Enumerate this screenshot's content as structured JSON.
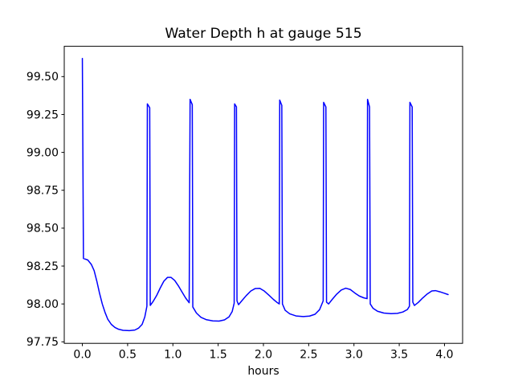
{
  "figure": {
    "background": "#ffffff",
    "axes_color": "#000000",
    "line_color": "#0000ff"
  },
  "chart_data": {
    "type": "line",
    "title": "Water Depth h at gauge 515",
    "xlabel": "hours",
    "ylabel": "",
    "grid": false,
    "legend": null,
    "xlim": [
      -0.2,
      4.2
    ],
    "ylim": [
      97.74,
      99.7
    ],
    "xticks": [
      0.0,
      0.5,
      1.0,
      1.5,
      2.0,
      2.5,
      3.0,
      3.5,
      4.0
    ],
    "xtick_labels": [
      "0.0",
      "0.5",
      "1.0",
      "1.5",
      "2.0",
      "2.5",
      "3.0",
      "3.5",
      "4.0"
    ],
    "yticks": [
      97.75,
      98.0,
      98.25,
      98.5,
      98.75,
      99.0,
      99.25,
      99.5
    ],
    "ytick_labels": [
      "97.75",
      "98.00",
      "98.25",
      "98.50",
      "98.75",
      "99.00",
      "99.25",
      "99.50"
    ],
    "series": [
      {
        "name": "water-depth-h",
        "color": "#0000ff",
        "line_width": 1.5,
        "points": [
          [
            0.0,
            99.62
          ],
          [
            0.012,
            98.3
          ],
          [
            0.06,
            98.29
          ],
          [
            0.1,
            98.26
          ],
          [
            0.13,
            98.22
          ],
          [
            0.16,
            98.15
          ],
          [
            0.19,
            98.07
          ],
          [
            0.22,
            98.0
          ],
          [
            0.25,
            97.945
          ],
          [
            0.28,
            97.9
          ],
          [
            0.32,
            97.865
          ],
          [
            0.36,
            97.845
          ],
          [
            0.4,
            97.833
          ],
          [
            0.45,
            97.826
          ],
          [
            0.52,
            97.824
          ],
          [
            0.58,
            97.828
          ],
          [
            0.62,
            97.84
          ],
          [
            0.66,
            97.865
          ],
          [
            0.69,
            97.915
          ],
          [
            0.713,
            97.985
          ],
          [
            0.718,
            99.32
          ],
          [
            0.744,
            99.295
          ],
          [
            0.75,
            97.99
          ],
          [
            0.78,
            98.015
          ],
          [
            0.82,
            98.055
          ],
          [
            0.86,
            98.105
          ],
          [
            0.9,
            98.15
          ],
          [
            0.94,
            98.175
          ],
          [
            0.98,
            98.175
          ],
          [
            1.02,
            98.155
          ],
          [
            1.06,
            98.12
          ],
          [
            1.1,
            98.08
          ],
          [
            1.14,
            98.04
          ],
          [
            1.18,
            98.008
          ],
          [
            1.19,
            99.35
          ],
          [
            1.214,
            99.315
          ],
          [
            1.22,
            97.98
          ],
          [
            1.26,
            97.94
          ],
          [
            1.31,
            97.912
          ],
          [
            1.37,
            97.896
          ],
          [
            1.44,
            97.888
          ],
          [
            1.51,
            97.887
          ],
          [
            1.57,
            97.895
          ],
          [
            1.62,
            97.915
          ],
          [
            1.655,
            97.95
          ],
          [
            1.677,
            98.005
          ],
          [
            1.682,
            99.32
          ],
          [
            1.702,
            99.3
          ],
          [
            1.708,
            98.02
          ],
          [
            1.725,
            97.995
          ],
          [
            1.76,
            98.02
          ],
          [
            1.81,
            98.055
          ],
          [
            1.86,
            98.085
          ],
          [
            1.91,
            98.102
          ],
          [
            1.96,
            98.103
          ],
          [
            2.01,
            98.085
          ],
          [
            2.06,
            98.058
          ],
          [
            2.11,
            98.03
          ],
          [
            2.155,
            98.008
          ],
          [
            2.175,
            98.0
          ],
          [
            2.18,
            99.345
          ],
          [
            2.203,
            99.31
          ],
          [
            2.21,
            98.0
          ],
          [
            2.24,
            97.958
          ],
          [
            2.29,
            97.935
          ],
          [
            2.36,
            97.921
          ],
          [
            2.44,
            97.917
          ],
          [
            2.51,
            97.92
          ],
          [
            2.57,
            97.932
          ],
          [
            2.62,
            97.962
          ],
          [
            2.66,
            98.02
          ],
          [
            2.665,
            99.33
          ],
          [
            2.69,
            99.3
          ],
          [
            2.697,
            98.012
          ],
          [
            2.72,
            98.0
          ],
          [
            2.76,
            98.03
          ],
          [
            2.81,
            98.065
          ],
          [
            2.86,
            98.092
          ],
          [
            2.91,
            98.104
          ],
          [
            2.96,
            98.095
          ],
          [
            3.01,
            98.072
          ],
          [
            3.06,
            98.052
          ],
          [
            3.11,
            98.04
          ],
          [
            3.145,
            98.035
          ],
          [
            3.15,
            99.35
          ],
          [
            3.172,
            99.3
          ],
          [
            3.18,
            98.0
          ],
          [
            3.21,
            97.972
          ],
          [
            3.26,
            97.952
          ],
          [
            3.33,
            97.94
          ],
          [
            3.41,
            97.936
          ],
          [
            3.48,
            97.938
          ],
          [
            3.54,
            97.947
          ],
          [
            3.59,
            97.963
          ],
          [
            3.613,
            97.985
          ],
          [
            3.618,
            99.33
          ],
          [
            3.643,
            99.3
          ],
          [
            3.65,
            98.012
          ],
          [
            3.668,
            97.99
          ],
          [
            3.71,
            98.01
          ],
          [
            3.76,
            98.04
          ],
          [
            3.81,
            98.066
          ],
          [
            3.86,
            98.086
          ],
          [
            3.9,
            98.088
          ],
          [
            3.95,
            98.08
          ],
          [
            4.0,
            98.07
          ],
          [
            4.04,
            98.062
          ]
        ]
      }
    ]
  }
}
